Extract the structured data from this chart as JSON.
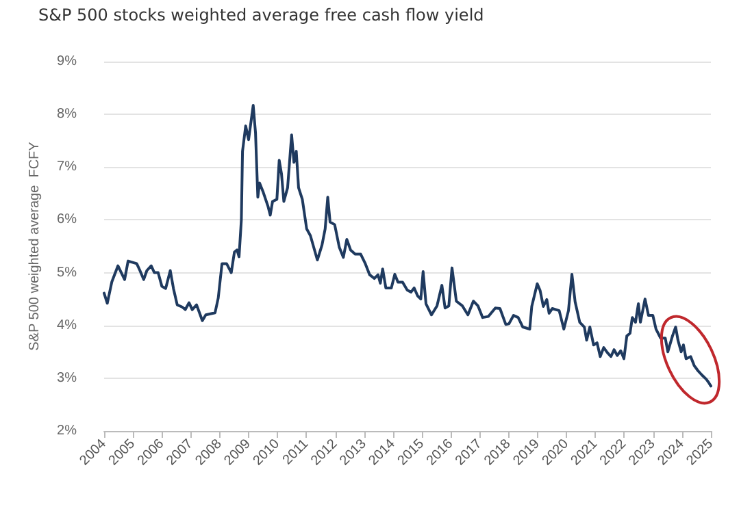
{
  "chart_data": {
    "type": "line",
    "title": "S&P 500 stocks weighted average free cash flow yield",
    "ylabel": "S&P 500 weighted average  FCFY",
    "x": [
      2004.0,
      2004.11,
      2004.27,
      2004.48,
      2004.71,
      2004.83,
      2005.13,
      2005.24,
      2005.37,
      2005.48,
      2005.63,
      2005.74,
      2005.87,
      2006.0,
      2006.13,
      2006.29,
      2006.4,
      2006.53,
      2006.7,
      2006.81,
      2006.94,
      2007.05,
      2007.2,
      2007.4,
      2007.52,
      2007.84,
      2007.95,
      2008.08,
      2008.24,
      2008.4,
      2008.51,
      2008.6,
      2008.67,
      2008.75,
      2008.79,
      2008.9,
      2009.0,
      2009.16,
      2009.24,
      2009.32,
      2009.38,
      2009.51,
      2009.67,
      2009.75,
      2009.83,
      2009.98,
      2010.06,
      2010.14,
      2010.22,
      2010.35,
      2010.49,
      2010.57,
      2010.65,
      2010.73,
      2010.86,
      2011.01,
      2011.14,
      2011.38,
      2011.54,
      2011.65,
      2011.74,
      2011.82,
      2011.98,
      2012.14,
      2012.28,
      2012.4,
      2012.53,
      2012.69,
      2012.88,
      2013.04,
      2013.19,
      2013.35,
      2013.48,
      2013.56,
      2013.64,
      2013.75,
      2013.94,
      2014.06,
      2014.17,
      2014.33,
      2014.49,
      2014.62,
      2014.73,
      2014.85,
      2014.96,
      2015.04,
      2015.14,
      2015.33,
      2015.52,
      2015.69,
      2015.8,
      2015.93,
      2016.04,
      2016.19,
      2016.4,
      2016.59,
      2016.78,
      2016.94,
      2017.1,
      2017.3,
      2017.54,
      2017.7,
      2017.9,
      2018.01,
      2018.17,
      2018.33,
      2018.49,
      2018.73,
      2018.8,
      2018.99,
      2019.09,
      2019.2,
      2019.32,
      2019.4,
      2019.51,
      2019.75,
      2019.91,
      2020.07,
      2020.19,
      2020.3,
      2020.46,
      2020.62,
      2020.7,
      2020.81,
      2020.94,
      2021.06,
      2021.17,
      2021.29,
      2021.41,
      2021.54,
      2021.65,
      2021.76,
      2021.88,
      2021.99,
      2022.09,
      2022.2,
      2022.28,
      2022.39,
      2022.49,
      2022.56,
      2022.72,
      2022.84,
      2022.99,
      2023.1,
      2023.26,
      2023.42,
      2023.51,
      2023.67,
      2023.78,
      2023.86,
      2023.97,
      2024.05,
      2024.14,
      2024.3,
      2024.42,
      2024.54,
      2024.69,
      2024.84,
      2024.92,
      2025.0
    ],
    "series": [
      {
        "color": "#1f3a5f",
        "values": [
          4.61,
          4.42,
          4.83,
          5.13,
          4.87,
          5.22,
          5.17,
          5.04,
          4.87,
          5.04,
          5.13,
          5.0,
          5.0,
          4.74,
          4.7,
          5.04,
          4.7,
          4.39,
          4.35,
          4.3,
          4.43,
          4.3,
          4.39,
          4.09,
          4.2,
          4.24,
          4.52,
          5.17,
          5.17,
          5.0,
          5.39,
          5.43,
          5.3,
          6.0,
          7.3,
          7.78,
          7.52,
          8.17,
          7.65,
          6.43,
          6.7,
          6.52,
          6.26,
          6.09,
          6.35,
          6.39,
          7.13,
          6.87,
          6.35,
          6.61,
          7.61,
          7.09,
          7.3,
          6.61,
          6.39,
          5.83,
          5.7,
          5.24,
          5.52,
          5.83,
          6.43,
          5.96,
          5.91,
          5.48,
          5.29,
          5.63,
          5.43,
          5.35,
          5.35,
          5.17,
          4.96,
          4.89,
          4.96,
          4.8,
          5.07,
          4.71,
          4.71,
          4.97,
          4.82,
          4.82,
          4.67,
          4.63,
          4.71,
          4.56,
          4.5,
          5.02,
          4.41,
          4.2,
          4.37,
          4.76,
          4.33,
          4.37,
          5.09,
          4.46,
          4.37,
          4.2,
          4.46,
          4.37,
          4.15,
          4.17,
          4.33,
          4.32,
          4.02,
          4.03,
          4.19,
          4.15,
          3.97,
          3.93,
          4.36,
          4.79,
          4.66,
          4.36,
          4.49,
          4.23,
          4.32,
          4.28,
          3.93,
          4.28,
          4.97,
          4.45,
          4.06,
          3.97,
          3.72,
          3.97,
          3.63,
          3.67,
          3.41,
          3.58,
          3.49,
          3.41,
          3.54,
          3.43,
          3.52,
          3.37,
          3.8,
          3.85,
          4.15,
          4.06,
          4.41,
          4.06,
          4.5,
          4.19,
          4.19,
          3.93,
          3.76,
          3.76,
          3.5,
          3.8,
          3.97,
          3.72,
          3.5,
          3.63,
          3.37,
          3.41,
          3.24,
          3.15,
          3.06,
          2.98,
          2.92,
          2.85
        ]
      }
    ],
    "xlim": [
      2004,
      2025
    ],
    "xticks": [
      2004,
      2005,
      2006,
      2007,
      2008,
      2009,
      2010,
      2011,
      2012,
      2013,
      2014,
      2015,
      2016,
      2017,
      2018,
      2019,
      2020,
      2021,
      2022,
      2023,
      2024,
      2025
    ],
    "ylim": [
      2,
      9
    ],
    "yticks": [
      {
        "value": 2,
        "label": "2%"
      },
      {
        "value": 3,
        "label": "3%"
      },
      {
        "value": 4,
        "label": "4%"
      },
      {
        "value": 5,
        "label": "5%"
      },
      {
        "value": 6,
        "label": "6%"
      },
      {
        "value": 7,
        "label": "7%"
      },
      {
        "value": 8,
        "label": "8%"
      },
      {
        "value": 9,
        "label": "9%"
      }
    ],
    "grid": "y",
    "marker": "none",
    "line_style": "solid"
  }
}
